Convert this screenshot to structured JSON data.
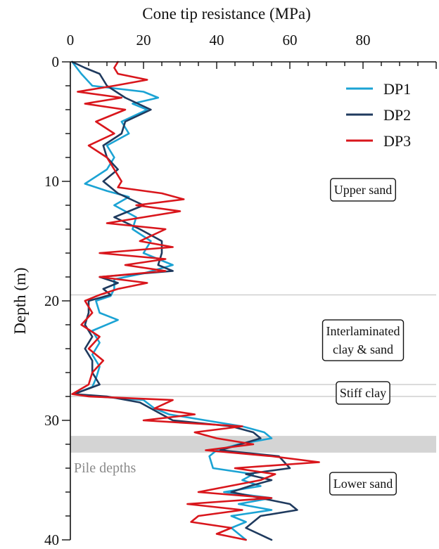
{
  "chart_data": {
    "type": "line",
    "title": "",
    "xlabel": "Cone tip resistance (MPa)",
    "ylabel": "Depth (m)",
    "xlim": [
      0,
      100
    ],
    "ylim": [
      40,
      0
    ],
    "x_ticks": [
      "0",
      "20",
      "40",
      "60",
      "80"
    ],
    "y_ticks": [
      "0",
      "10",
      "20",
      "30",
      "40"
    ],
    "x_axis_position": "top",
    "y_inverted": true,
    "grid": false,
    "legend_position": "top-right",
    "series": [
      {
        "name": "DP1",
        "color": "#1ba3d4",
        "points": [
          [
            0.5,
            0
          ],
          [
            3,
            1
          ],
          [
            6,
            2
          ],
          [
            20,
            2.5
          ],
          [
            24,
            3
          ],
          [
            17,
            3.5
          ],
          [
            21,
            4
          ],
          [
            14,
            5
          ],
          [
            16,
            6
          ],
          [
            10,
            7
          ],
          [
            12,
            8
          ],
          [
            10,
            9
          ],
          [
            4,
            10.2
          ],
          [
            10,
            10.8
          ],
          [
            16,
            11.3
          ],
          [
            12,
            12
          ],
          [
            18,
            13
          ],
          [
            17,
            14
          ],
          [
            22,
            15
          ],
          [
            20,
            16
          ],
          [
            28,
            17
          ],
          [
            20,
            17.7
          ],
          [
            12,
            18.2
          ],
          [
            12,
            19
          ],
          [
            11,
            19.6
          ],
          [
            7,
            20
          ],
          [
            8,
            21
          ],
          [
            13,
            21.6
          ],
          [
            6,
            22.5
          ],
          [
            8,
            23.5
          ],
          [
            6,
            24.5
          ],
          [
            8,
            25.5
          ],
          [
            7,
            26.5
          ],
          [
            6,
            27.2
          ],
          [
            1,
            27.8
          ],
          [
            7,
            28
          ],
          [
            20,
            28.3
          ],
          [
            23,
            29
          ],
          [
            27,
            29.5
          ],
          [
            37,
            30
          ],
          [
            47,
            30.5
          ],
          [
            53,
            31
          ],
          [
            55,
            31.5
          ],
          [
            46,
            32
          ],
          [
            40,
            32.5
          ],
          [
            38,
            33
          ],
          [
            39,
            34
          ],
          [
            50,
            34.5
          ],
          [
            47,
            35
          ],
          [
            52,
            35.5
          ],
          [
            42,
            36
          ],
          [
            55,
            36.5
          ],
          [
            46,
            37
          ],
          [
            55,
            37.5
          ],
          [
            44,
            38
          ],
          [
            48,
            38.5
          ],
          [
            44,
            39
          ],
          [
            46,
            39.5
          ],
          [
            48,
            40
          ]
        ]
      },
      {
        "name": "DP2",
        "color": "#1f3a5e",
        "points": [
          [
            0.5,
            0
          ],
          [
            4,
            0.5
          ],
          [
            8,
            1
          ],
          [
            10,
            2
          ],
          [
            15,
            3
          ],
          [
            22,
            4
          ],
          [
            15,
            5
          ],
          [
            14,
            6
          ],
          [
            9,
            7
          ],
          [
            10,
            8
          ],
          [
            13,
            9
          ],
          [
            9,
            10
          ],
          [
            13,
            11
          ],
          [
            20,
            12
          ],
          [
            12,
            13
          ],
          [
            19,
            14
          ],
          [
            25,
            15
          ],
          [
            25,
            16
          ],
          [
            24,
            17
          ],
          [
            28,
            17.5
          ],
          [
            8,
            18
          ],
          [
            13,
            18.5
          ],
          [
            9,
            19
          ],
          [
            11,
            19.5
          ],
          [
            5,
            20
          ],
          [
            5,
            21
          ],
          [
            4,
            22
          ],
          [
            6,
            23
          ],
          [
            4,
            24
          ],
          [
            6,
            25
          ],
          [
            6,
            26
          ],
          [
            8,
            27
          ],
          [
            1,
            27.8
          ],
          [
            10,
            28
          ],
          [
            19,
            28.5
          ],
          [
            22,
            29
          ],
          [
            28,
            30
          ],
          [
            44,
            30.5
          ],
          [
            50,
            31
          ],
          [
            52,
            31.5
          ],
          [
            41,
            32.5
          ],
          [
            57,
            33
          ],
          [
            60,
            34
          ],
          [
            48,
            34.5
          ],
          [
            55,
            35
          ],
          [
            49,
            35.5
          ],
          [
            44,
            36
          ],
          [
            60,
            37
          ],
          [
            62,
            37.5
          ],
          [
            52,
            38
          ],
          [
            48,
            39
          ],
          [
            55,
            40
          ]
        ]
      },
      {
        "name": "DP3",
        "color": "#d9161c",
        "points": [
          [
            13,
            0
          ],
          [
            12,
            0.5
          ],
          [
            13,
            1
          ],
          [
            21,
            1.5
          ],
          [
            12,
            2
          ],
          [
            2,
            2.5
          ],
          [
            14,
            3
          ],
          [
            4,
            3.5
          ],
          [
            15,
            4
          ],
          [
            7,
            5
          ],
          [
            12,
            6
          ],
          [
            5,
            7
          ],
          [
            10,
            8
          ],
          [
            12,
            9
          ],
          [
            14,
            10
          ],
          [
            13,
            10.5
          ],
          [
            25,
            11
          ],
          [
            31,
            11.5
          ],
          [
            18,
            12
          ],
          [
            30,
            12.5
          ],
          [
            10,
            13.5
          ],
          [
            26,
            14
          ],
          [
            19,
            15
          ],
          [
            28,
            15.5
          ],
          [
            8,
            16
          ],
          [
            26,
            16.5
          ],
          [
            15,
            17
          ],
          [
            26,
            17.5
          ],
          [
            8,
            18
          ],
          [
            21,
            18.5
          ],
          [
            13,
            19
          ],
          [
            8,
            19.5
          ],
          [
            4,
            20
          ],
          [
            6,
            21
          ],
          [
            3,
            22
          ],
          [
            8,
            23
          ],
          [
            5,
            24
          ],
          [
            9,
            25
          ],
          [
            6,
            26
          ],
          [
            5,
            27
          ],
          [
            0.5,
            27.8
          ],
          [
            5,
            28
          ],
          [
            28,
            28.3
          ],
          [
            23,
            29
          ],
          [
            34,
            29.5
          ],
          [
            20,
            30
          ],
          [
            47,
            30.5
          ],
          [
            34,
            31
          ],
          [
            40,
            31.5
          ],
          [
            50,
            32
          ],
          [
            37,
            32.5
          ],
          [
            55,
            33
          ],
          [
            68,
            33.5
          ],
          [
            45,
            34
          ],
          [
            56,
            34.5
          ],
          [
            52,
            35
          ],
          [
            35,
            36
          ],
          [
            55,
            36.5
          ],
          [
            32,
            37
          ],
          [
            47,
            37.5
          ],
          [
            35,
            38
          ],
          [
            33,
            38.5
          ],
          [
            44,
            39
          ],
          [
            40,
            39.5
          ],
          [
            48,
            40
          ]
        ]
      }
    ],
    "zones": [
      {
        "label": "Upper sand",
        "depth_label": 10.7
      },
      {
        "label_lines": [
          "Interlaminated",
          "clay & sand"
        ],
        "depth_label": 23.3
      },
      {
        "label": "Stiff clay",
        "depth_label": 27.7
      },
      {
        "label": "Lower sand",
        "depth_label": 35.3
      }
    ],
    "zone_boundaries": [
      19.5,
      27,
      28
    ],
    "pile_band": {
      "label": "Pile depths",
      "from": 31.3,
      "to": 32.7
    }
  }
}
